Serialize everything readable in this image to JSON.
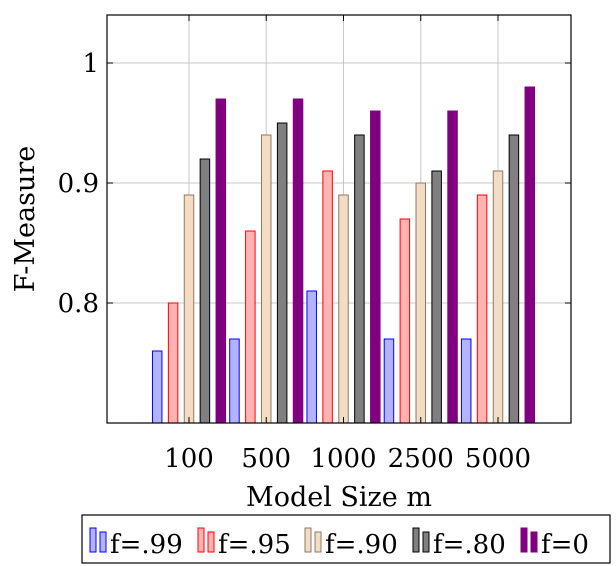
{
  "chart_data": {
    "type": "bar",
    "title": "",
    "xlabel": "Model Size m",
    "ylabel": "F-Measure",
    "categories": [
      "100",
      "500",
      "1000",
      "2500",
      "5000"
    ],
    "ylim": [
      0.7,
      1.04
    ],
    "yticks": [
      0.8,
      0.9,
      1
    ],
    "ytick_labels": [
      "0.8",
      "0.9",
      "1"
    ],
    "grid": true,
    "legend_position": "bottom",
    "series": [
      {
        "name": "f=.99",
        "values": [
          0.76,
          0.77,
          0.81,
          0.77,
          0.77
        ],
        "fill": "#b3b3ff",
        "stroke": "#0000ff"
      },
      {
        "name": "f=.95",
        "values": [
          0.8,
          0.86,
          0.91,
          0.87,
          0.89
        ],
        "fill": "#ffb3b3",
        "stroke": "#ff0000"
      },
      {
        "name": "f=.90",
        "values": [
          0.89,
          0.94,
          0.89,
          0.9,
          0.91
        ],
        "fill": "#f2dcc4",
        "stroke": "#8c7a66"
      },
      {
        "name": "f=.80",
        "values": [
          0.92,
          0.95,
          0.94,
          0.91,
          0.94
        ],
        "fill": "#808080",
        "stroke": "#000000"
      },
      {
        "name": "f=0",
        "values": [
          0.97,
          0.97,
          0.96,
          0.96,
          0.98
        ],
        "fill": "#800080",
        "stroke": "#800080"
      }
    ]
  }
}
